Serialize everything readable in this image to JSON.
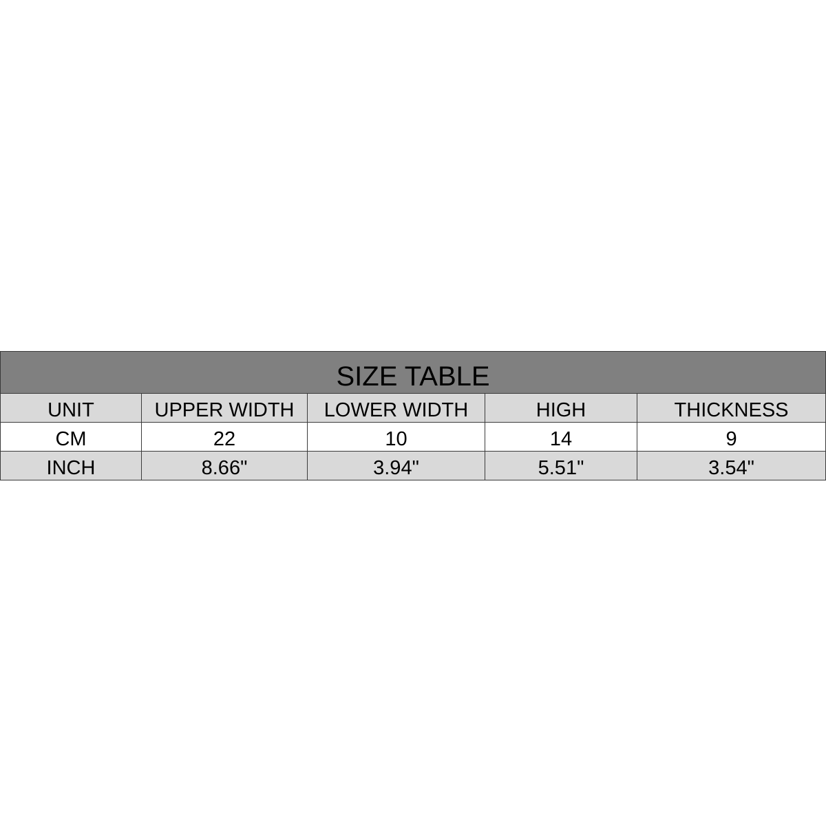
{
  "title": "SIZE TABLE",
  "headers": [
    "UNIT",
    "UPPER WIDTH",
    "LOWER WIDTH",
    "HIGH",
    "THICKNESS"
  ],
  "rows": [
    [
      "CM",
      "22",
      "10",
      "14",
      "9"
    ],
    [
      "INCH",
      "8.66\"",
      "3.94\"",
      "5.51\"",
      "3.54\""
    ]
  ],
  "colors": {
    "title_bg": "#808080",
    "header_bg": "#d9d9d9",
    "alt_row_bg": "#d9d9d9"
  }
}
